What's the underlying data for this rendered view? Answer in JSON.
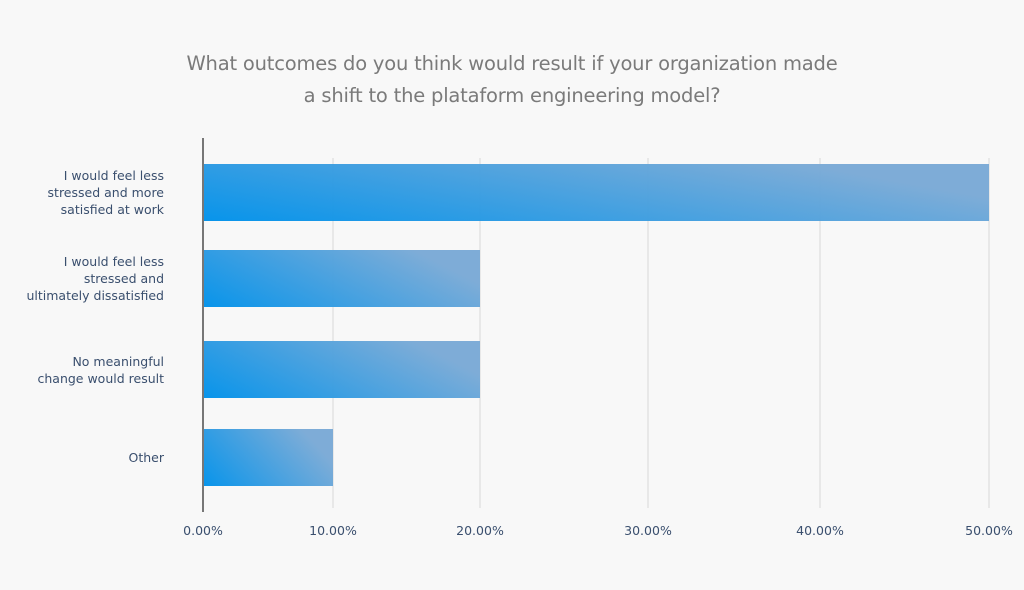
{
  "chart_data": {
    "type": "bar",
    "orientation": "horizontal",
    "title": "What outcomes do you think would result if your organization made a shift to the plataform engineering model?",
    "title_lines": [
      "What outcomes do you think would result if your organization made",
      "a shift to the plataform engineering model?"
    ],
    "categories": [
      "I would feel less stressed and more satisfied at work",
      "I would feel less stressed and ultimately dissatisfied",
      "No meaningful change would result",
      "Other"
    ],
    "category_label_lines": [
      [
        "I would feel less",
        "stressed and more",
        "satisfied at work"
      ],
      [
        "I would feel less",
        "stressed and",
        "ultimately dissatisfied"
      ],
      [
        "No meaningful",
        "change would result"
      ],
      [
        "Other"
      ]
    ],
    "values": [
      50,
      20,
      20,
      10
    ],
    "unit": "%",
    "xlabel": "",
    "ylabel": "",
    "xlim": [
      0,
      50
    ],
    "xticks": [
      0,
      10,
      20,
      30,
      40,
      50
    ],
    "xtick_labels": [
      "0.00%",
      "10.00%",
      "20.00%",
      "30.00%",
      "40.00%",
      "50.00%"
    ],
    "grid": "vertical",
    "legend": "none",
    "colors": {
      "bar_start": "#0091ea",
      "bar_end": "#7aaad6",
      "grid": "#e2e2e2",
      "axis": "#777777",
      "label": "#3a4f6e",
      "title": "#7a7a7a",
      "background": "#f8f8f8"
    }
  }
}
